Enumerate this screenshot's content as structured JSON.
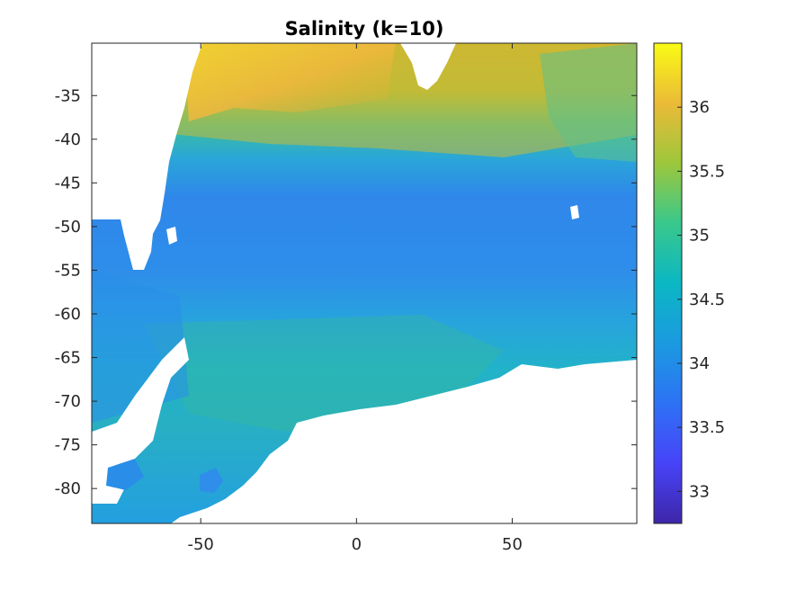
{
  "chart_data": {
    "type": "heatmap",
    "title": "Salinity (k=10)",
    "xlabel": "",
    "ylabel": "",
    "xlim": [
      -85,
      90
    ],
    "ylim": [
      -84,
      -29
    ],
    "x_ticks": [
      -50,
      0,
      50
    ],
    "y_ticks": [
      -35,
      -40,
      -45,
      -50,
      -55,
      -60,
      -65,
      -70,
      -75,
      -80
    ],
    "colorbar": {
      "range": [
        32.75,
        36.5
      ],
      "ticks": [
        33,
        33.5,
        34,
        34.5,
        35,
        35.5,
        36
      ],
      "tick_labels": [
        "33",
        "33.5",
        "34",
        "34.5",
        "35",
        "35.5",
        "36"
      ],
      "colormap": "parula"
    },
    "land_color": "#ffffff",
    "zones": [
      {
        "lat_range": [
          -29,
          -37
        ],
        "value": 35.7
      },
      {
        "lat_range": [
          -37,
          -42
        ],
        "value": 35.2
      },
      {
        "lat_range": [
          -42,
          -45
        ],
        "value": 34.5
      },
      {
        "lat_range": [
          -45,
          -57
        ],
        "value": 34.0
      },
      {
        "lat_range": [
          -57,
          -65
        ],
        "value": 34.2
      },
      {
        "lat_range": [
          -65,
          -75
        ],
        "value": 34.5
      },
      {
        "lat_range": [
          -75,
          -84
        ],
        "value": 34.2
      }
    ]
  }
}
